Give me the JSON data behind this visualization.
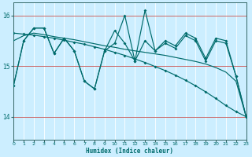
{
  "xlabel": "Humidex (Indice chaleur)",
  "bg_color": "#cceeff",
  "line_color": "#006b6b",
  "red_line_color": "#cc6666",
  "white_grid_color": "#b0dde8",
  "x_min": 0,
  "x_max": 23,
  "y_min": 13.55,
  "y_max": 16.25,
  "yticks": [
    14,
    15,
    16
  ],
  "xticks": [
    0,
    1,
    2,
    3,
    4,
    5,
    6,
    7,
    8,
    9,
    10,
    11,
    12,
    13,
    14,
    15,
    16,
    17,
    18,
    19,
    20,
    21,
    22,
    23
  ],
  "series_jagged1": [
    14.62,
    15.5,
    15.75,
    15.75,
    15.25,
    15.55,
    15.3,
    14.7,
    14.55,
    15.3,
    15.45,
    16.0,
    15.1,
    16.1,
    15.3,
    15.5,
    15.4,
    15.65,
    15.55,
    15.15,
    15.55,
    15.5,
    14.8,
    14.0
  ],
  "series_jagged2": [
    14.62,
    15.5,
    15.75,
    15.75,
    15.25,
    15.55,
    15.3,
    14.7,
    14.55,
    15.3,
    15.7,
    15.45,
    15.1,
    15.5,
    15.3,
    15.45,
    15.35,
    15.6,
    15.5,
    15.1,
    15.5,
    15.45,
    14.8,
    14.0
  ],
  "series_smooth": [
    15.5,
    15.6,
    15.65,
    15.62,
    15.58,
    15.55,
    15.52,
    15.48,
    15.44,
    15.4,
    15.37,
    15.33,
    15.3,
    15.27,
    15.24,
    15.21,
    15.17,
    15.13,
    15.09,
    15.04,
    14.97,
    14.88,
    14.7,
    14.0
  ],
  "series_trend": [
    15.65,
    15.63,
    15.61,
    15.58,
    15.55,
    15.51,
    15.47,
    15.43,
    15.38,
    15.33,
    15.27,
    15.21,
    15.14,
    15.07,
    14.99,
    14.91,
    14.82,
    14.72,
    14.61,
    14.49,
    14.36,
    14.22,
    14.1,
    14.0
  ]
}
